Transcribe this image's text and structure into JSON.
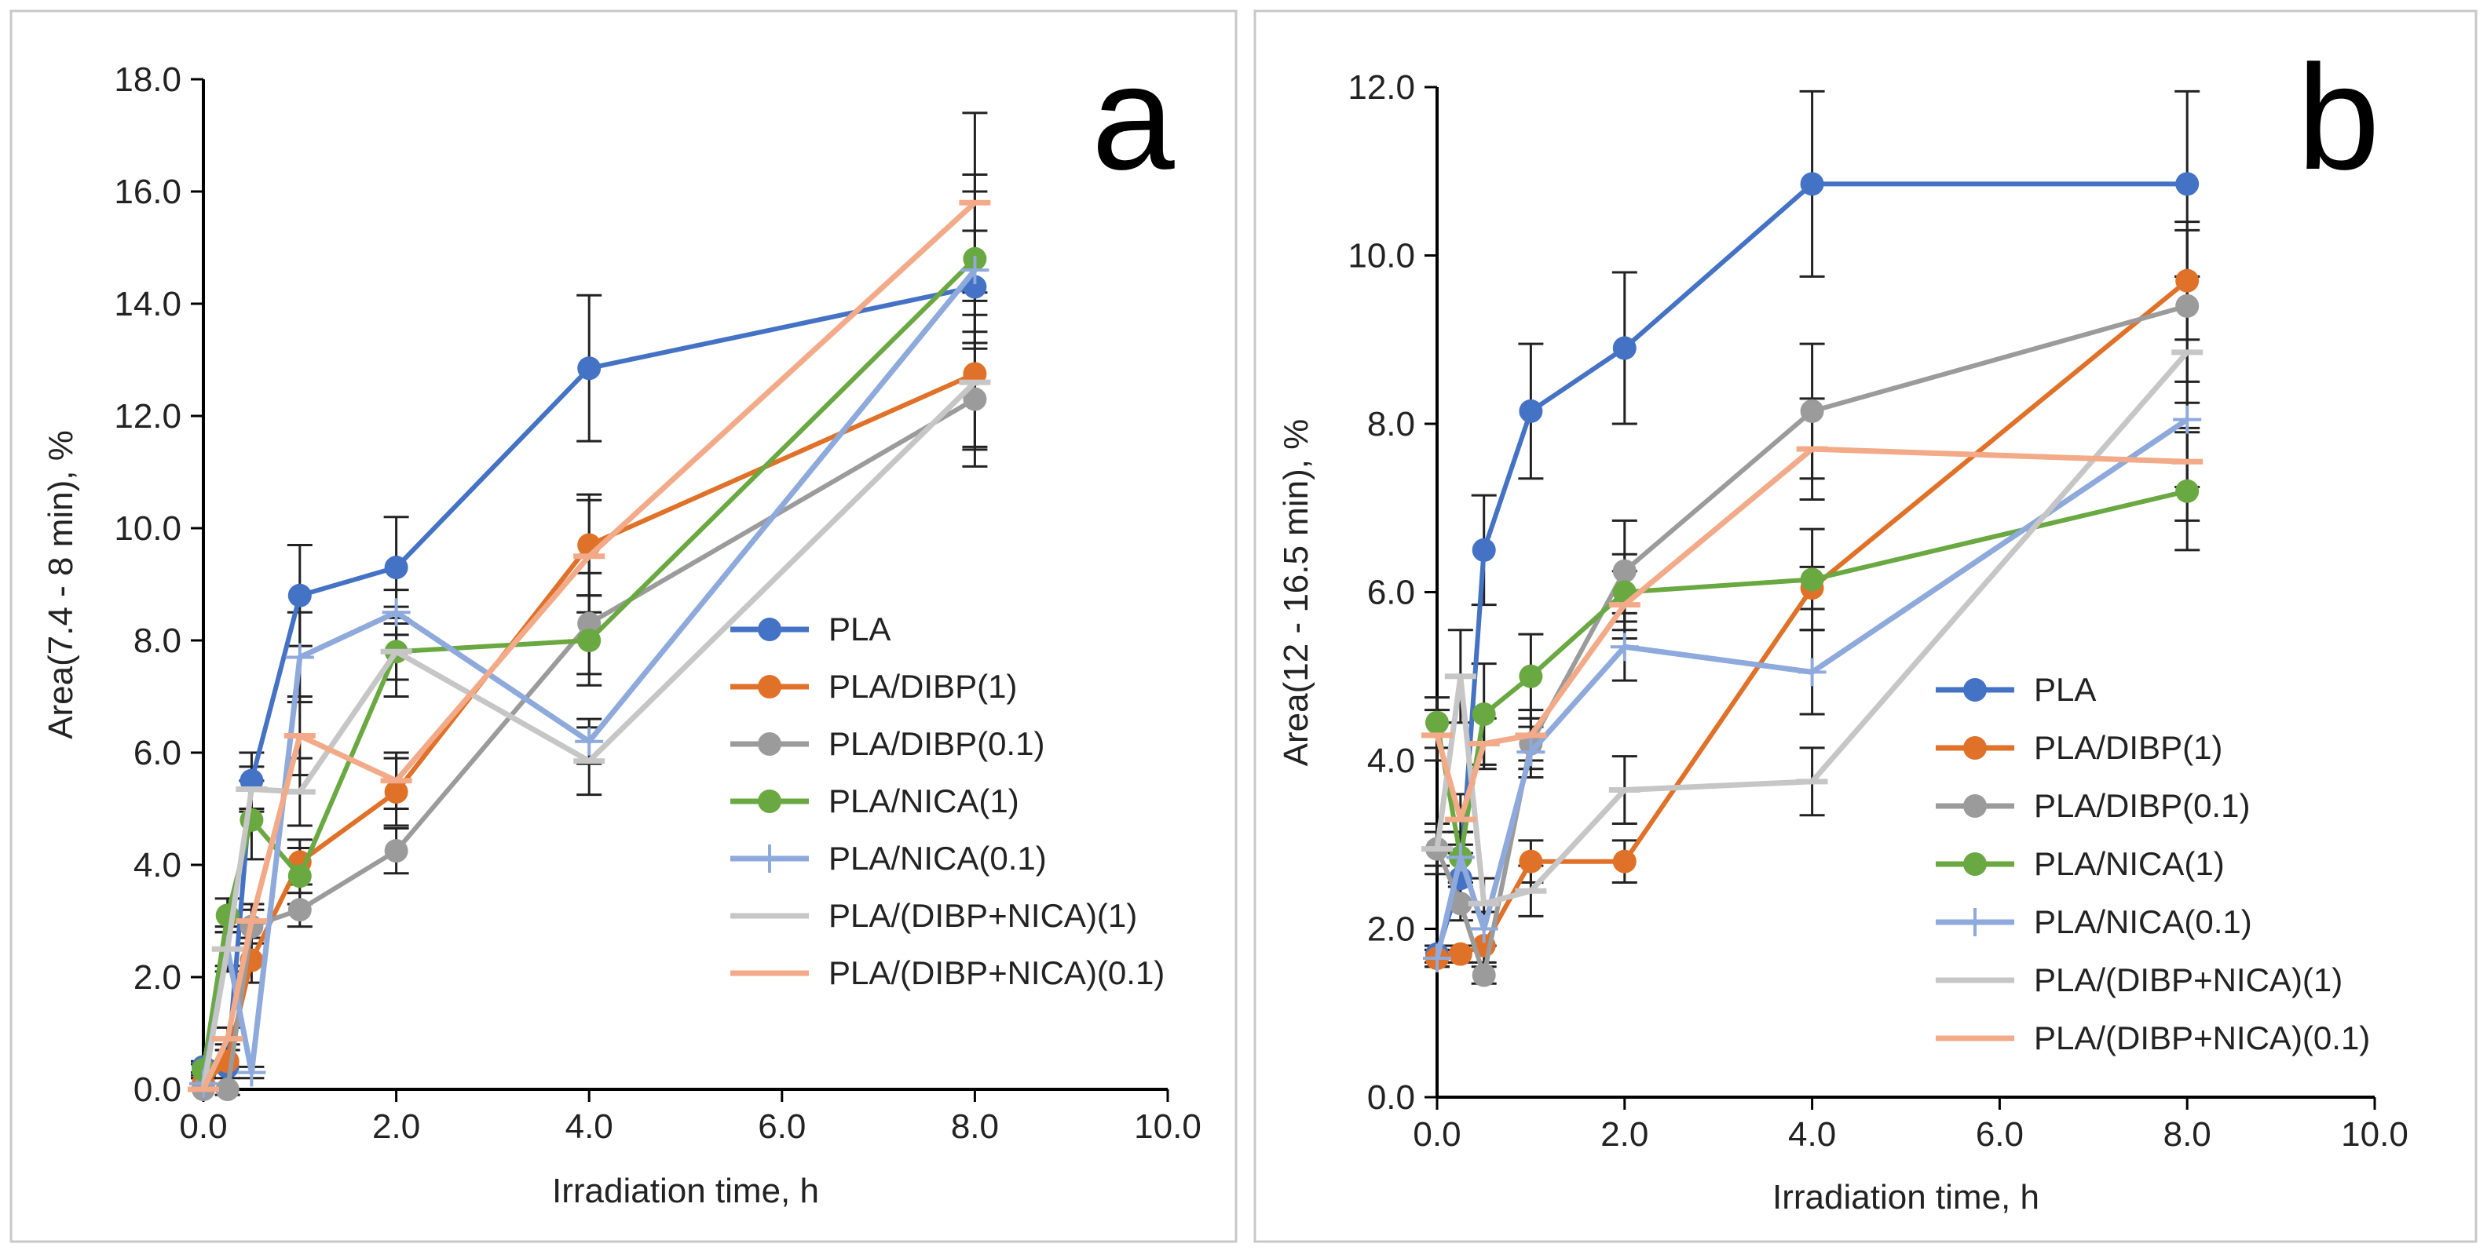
{
  "colors": {
    "PLA": "#4472C4",
    "PLA/DIBP(1)": "#E07128",
    "PLA/DIBP(0.1)": "#9B9B9B",
    "PLA/NICA(1)": "#6AA842",
    "PLA/NICA(0.1)": "#8EA9DB",
    "PLA/(DIBP+NICA)(1)": "#C6C6C6",
    "PLA/(DIBP+NICA)(0.1)": "#F2AA88"
  },
  "chart_data": [
    {
      "type": "line",
      "panel_letter": "a",
      "xlabel": "Irradiation time, h",
      "ylabel": "Area(7.4 - 8 min), %",
      "xlim": [
        0,
        10
      ],
      "ylim": [
        0,
        18
      ],
      "xticks": [
        "0.0",
        "2.0",
        "4.0",
        "6.0",
        "8.0",
        "10.0"
      ],
      "yticks": [
        "0.0",
        "2.0",
        "4.0",
        "6.0",
        "8.0",
        "10.0",
        "12.0",
        "14.0",
        "16.0",
        "18.0"
      ],
      "legend_position": "lower-right",
      "x": [
        0,
        0.25,
        0.5,
        1,
        2,
        4,
        8
      ],
      "series": [
        {
          "name": "PLA",
          "marker": "circle",
          "values": [
            0.4,
            0.4,
            5.5,
            8.8,
            9.3,
            12.85,
            14.3
          ],
          "errors": [
            0.1,
            0.5,
            0.5,
            0.9,
            0.9,
            1.3,
            1.0
          ]
        },
        {
          "name": "PLA/DIBP(1)",
          "marker": "circle",
          "values": [
            0.1,
            0.5,
            2.3,
            4.05,
            5.3,
            9.7,
            12.75
          ],
          "errors": [
            0.1,
            0.3,
            0.4,
            0.4,
            0.6,
            0.9,
            1.3
          ]
        },
        {
          "name": "PLA/DIBP(0.1)",
          "marker": "circle",
          "values": [
            0.0,
            0.0,
            2.9,
            3.2,
            4.25,
            8.3,
            12.3
          ],
          "errors": [
            0.0,
            0.0,
            0.3,
            0.3,
            0.4,
            0.9,
            1.2
          ]
        },
        {
          "name": "PLA/NICA(1)",
          "marker": "circle",
          "values": [
            0.35,
            3.1,
            4.8,
            3.8,
            7.8,
            8.0,
            14.8
          ],
          "errors": [
            0.1,
            0.3,
            0.7,
            0.5,
            0.8,
            0.8,
            1.5
          ]
        },
        {
          "name": "PLA/NICA(0.1)",
          "marker": "plus",
          "values": [
            0.1,
            2.5,
            0.3,
            7.7,
            8.5,
            6.2,
            14.6
          ],
          "errors": [
            0.1,
            0.4,
            0.1,
            0.8,
            0.4,
            0.4,
            1.4
          ]
        },
        {
          "name": "PLA/(DIBP+NICA)(1)",
          "marker": "dash",
          "values": [
            0.0,
            2.5,
            5.35,
            5.3,
            7.8,
            5.85,
            12.6
          ],
          "errors": [
            0.0,
            0.3,
            0.4,
            0.6,
            0.5,
            0.6,
            1.2
          ]
        },
        {
          "name": "PLA/(DIBP+NICA)(0.1)",
          "marker": "dash",
          "values": [
            0.0,
            0.9,
            3.0,
            6.3,
            5.5,
            9.5,
            15.8
          ],
          "errors": [
            0.0,
            0.2,
            0.3,
            0.7,
            0.5,
            1.0,
            1.6
          ]
        }
      ]
    },
    {
      "type": "line",
      "panel_letter": "b",
      "xlabel": "Irradiation time, h",
      "ylabel": "Area(12  - 16.5 min), %",
      "xlim": [
        0,
        10
      ],
      "ylim": [
        0,
        12
      ],
      "xticks": [
        "0.0",
        "2.0",
        "4.0",
        "6.0",
        "8.0",
        "10.0"
      ],
      "yticks": [
        "0.0",
        "2.0",
        "4.0",
        "6.0",
        "8.0",
        "10.0",
        "12.0"
      ],
      "legend_position": "lower-right",
      "x": [
        0,
        0.25,
        0.5,
        1,
        2,
        4,
        8
      ],
      "series": [
        {
          "name": "PLA",
          "marker": "circle",
          "values": [
            1.7,
            2.6,
            6.5,
            8.15,
            8.9,
            10.85,
            10.85
          ],
          "errors": [
            0.1,
            0.3,
            0.65,
            0.8,
            0.9,
            1.1,
            1.1
          ]
        },
        {
          "name": "PLA/DIBP(1)",
          "marker": "circle",
          "values": [
            1.65,
            1.7,
            1.8,
            2.8,
            2.8,
            6.05,
            9.7
          ],
          "errors": [
            0.1,
            0.1,
            0.2,
            0.25,
            0.25,
            0.25,
            0.7
          ]
        },
        {
          "name": "PLA/DIBP(0.1)",
          "marker": "circle",
          "values": [
            2.95,
            2.3,
            1.45,
            4.2,
            6.25,
            8.15,
            9.4
          ],
          "errors": [
            0.3,
            0.2,
            0.1,
            0.3,
            0.6,
            0.8,
            0.9
          ]
        },
        {
          "name": "PLA/NICA(1)",
          "marker": "circle",
          "values": [
            4.45,
            2.85,
            4.55,
            5.0,
            6.0,
            6.15,
            7.2
          ],
          "errors": [
            0.3,
            0.3,
            0.6,
            0.5,
            0.45,
            0.6,
            0.7
          ]
        },
        {
          "name": "PLA/NICA(0.1)",
          "marker": "plus",
          "values": [
            1.65,
            2.85,
            2.0,
            4.1,
            5.35,
            5.05,
            8.05
          ],
          "errors": [
            0.1,
            0.3,
            0.2,
            0.3,
            0.4,
            0.5,
            0.8
          ]
        },
        {
          "name": "PLA/(DIBP+NICA)(1)",
          "marker": "dash",
          "values": [
            2.95,
            5.0,
            2.3,
            2.45,
            3.65,
            3.75,
            8.85
          ],
          "errors": [
            0.2,
            0.55,
            0.3,
            0.3,
            0.4,
            0.4,
            0.9
          ]
        },
        {
          "name": "PLA/(DIBP+NICA)(0.1)",
          "marker": "dash",
          "values": [
            4.3,
            3.3,
            4.2,
            4.3,
            5.85,
            7.7,
            7.55
          ],
          "errors": [
            0.3,
            0.3,
            0.3,
            0.3,
            0.4,
            0.6,
            0.7
          ]
        }
      ]
    }
  ]
}
